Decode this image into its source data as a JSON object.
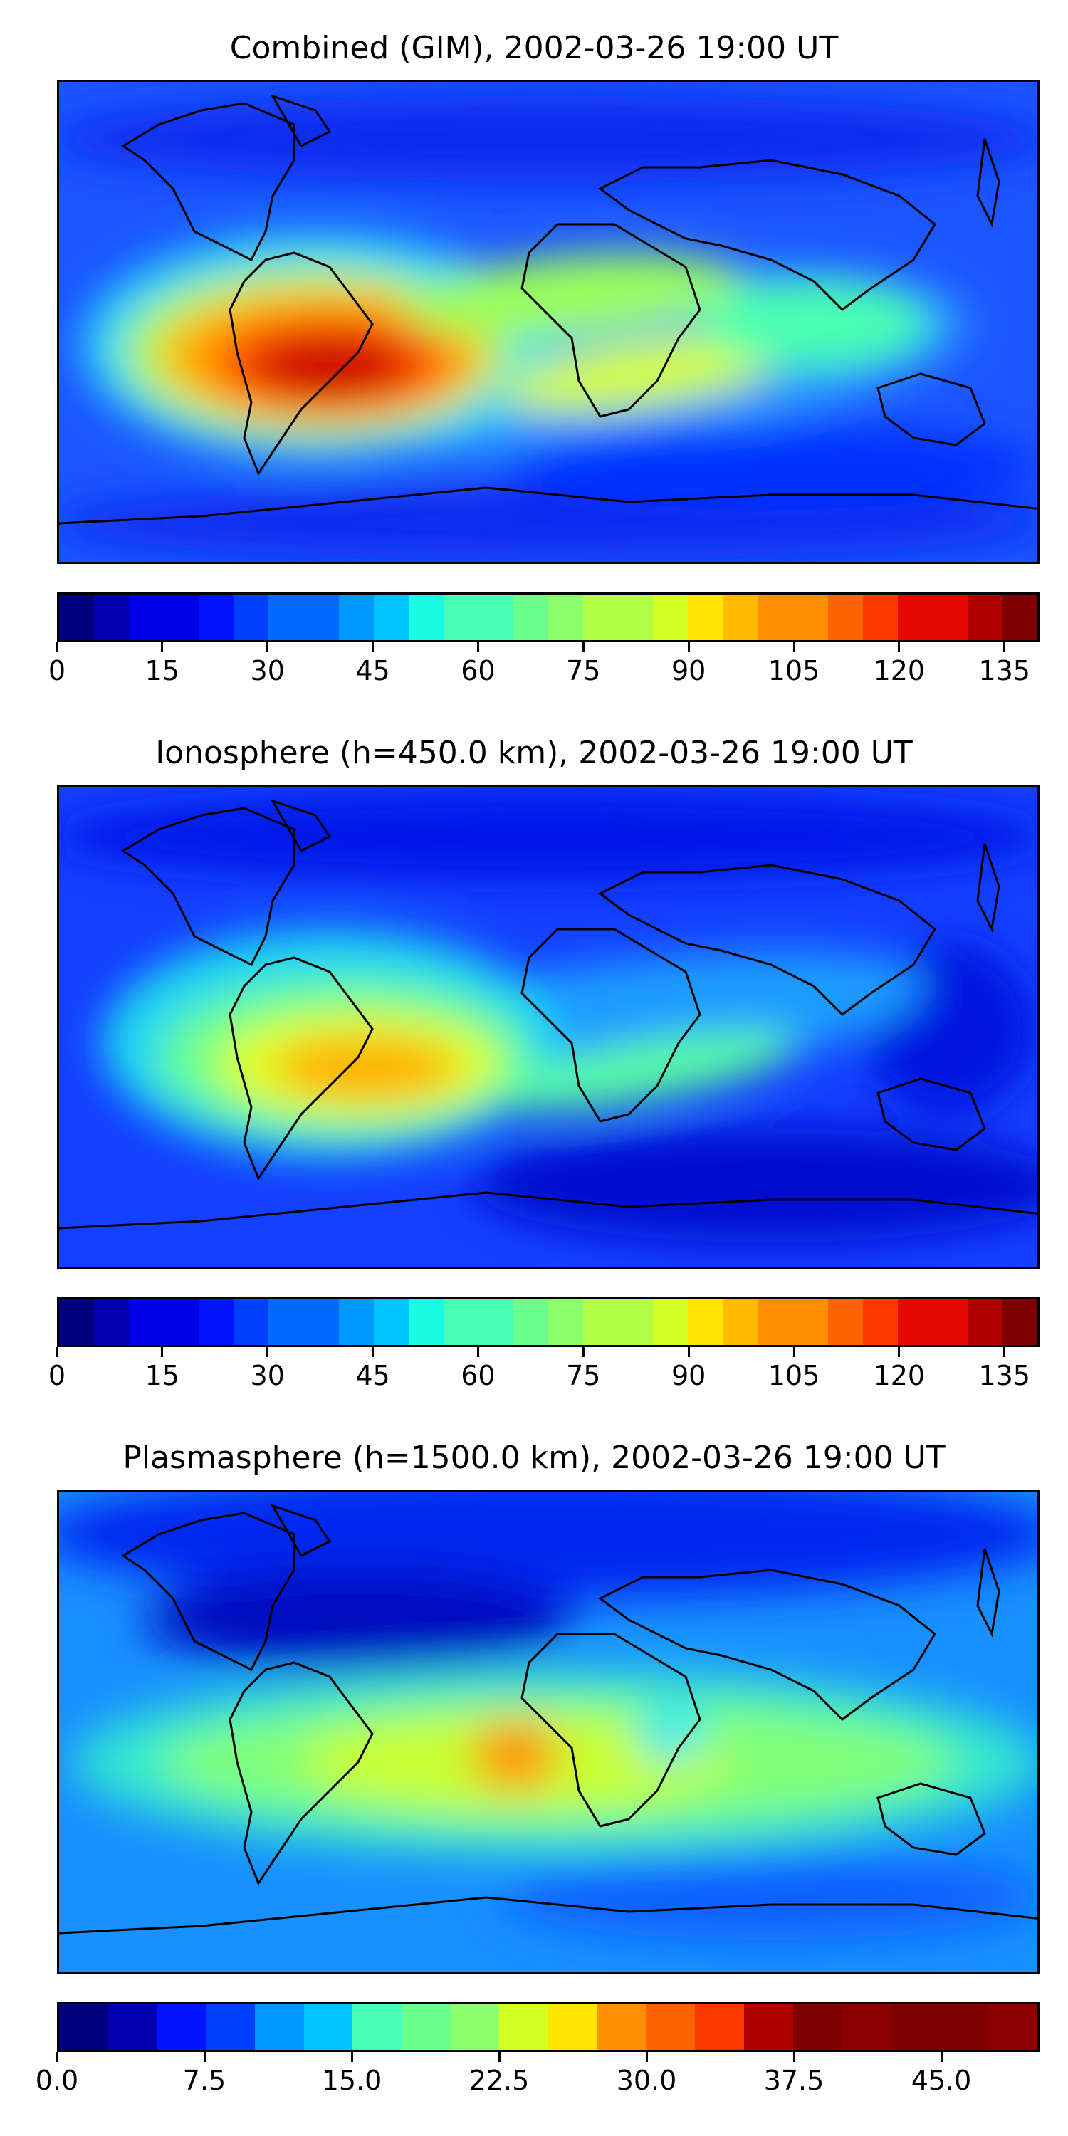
{
  "panels": [
    {
      "title": "Combined (GIM), 2002-03-26 19:00 UT",
      "colorbar": {
        "min": 0,
        "max": 140,
        "ticks": [
          "0",
          "15",
          "30",
          "45",
          "60",
          "75",
          "90",
          "105",
          "120",
          "135"
        ],
        "tick_values": [
          0,
          15,
          30,
          45,
          60,
          75,
          90,
          105,
          120,
          135
        ]
      }
    },
    {
      "title": "Ionosphere  (h=450.0 km), 2002-03-26 19:00 UT",
      "colorbar": {
        "min": 0,
        "max": 140,
        "ticks": [
          "0",
          "15",
          "30",
          "45",
          "60",
          "75",
          "90",
          "105",
          "120",
          "135"
        ],
        "tick_values": [
          0,
          15,
          30,
          45,
          60,
          75,
          90,
          105,
          120,
          135
        ]
      }
    },
    {
      "title": "Plasmasphere (h=1500.0 km), 2002-03-26 19:00 UT",
      "colorbar": {
        "min": 0,
        "max": 50,
        "ticks": [
          "0.0",
          "7.5",
          "15.0",
          "22.5",
          "30.0",
          "37.5",
          "45.0"
        ],
        "tick_values": [
          0,
          7.5,
          15,
          22.5,
          30,
          37.5,
          45
        ]
      }
    }
  ],
  "colormap": [
    "#00007f",
    "#0000b2",
    "#0000e8",
    "#0014ff",
    "#0040ff",
    "#006cff",
    "#0098ff",
    "#00c4ff",
    "#1afbe3",
    "#46ffb7",
    "#6aff8c",
    "#8cff6a",
    "#b0ff46",
    "#d4ff23",
    "#ffe500",
    "#ffbb00",
    "#ff8e00",
    "#ff6300",
    "#ff3800",
    "#e50a00",
    "#b20000",
    "#7f0000",
    "#7f0000",
    "#8b0000",
    "#7f0000",
    "#8b0000",
    "#7f0000",
    "#8b0000"
  ],
  "colors": {
    "ocean_base": "#1040ff",
    "coast": "#000000"
  }
}
